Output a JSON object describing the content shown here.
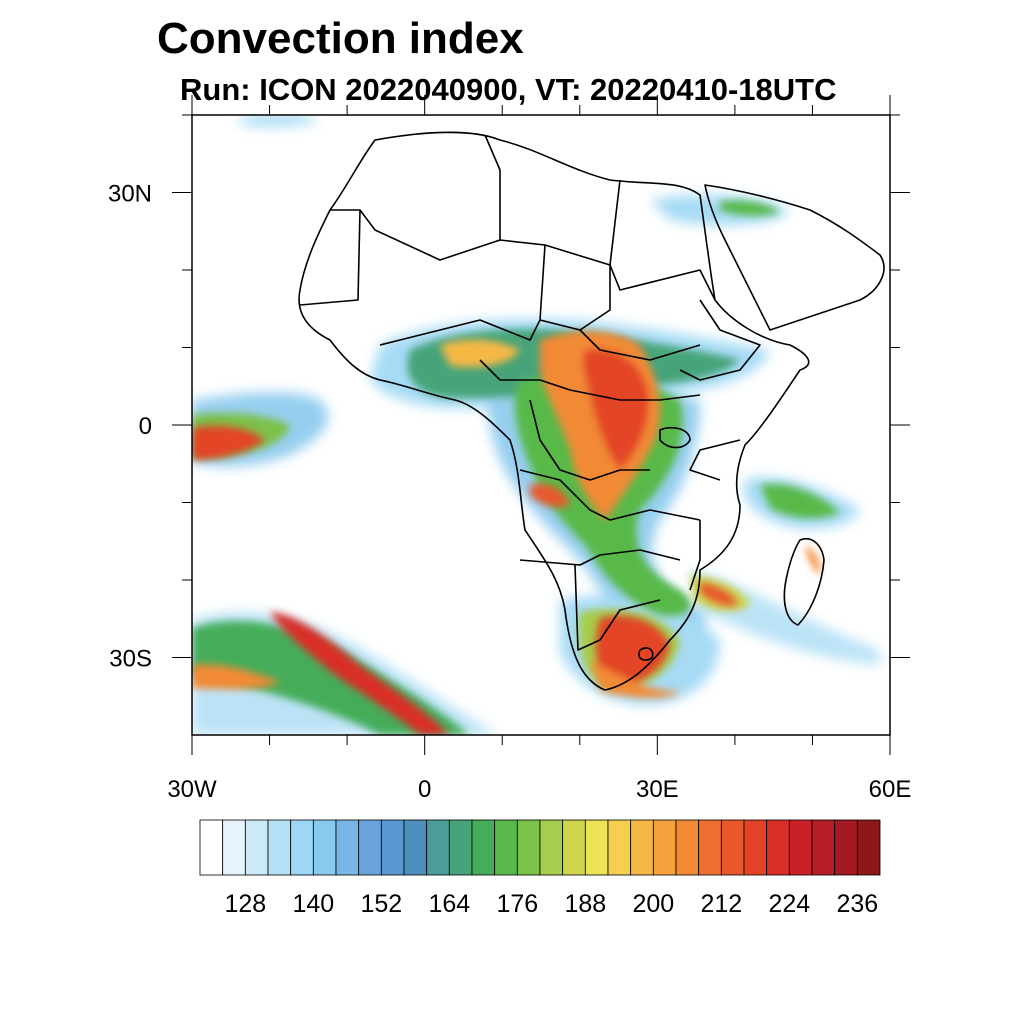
{
  "title": "Convection index",
  "subtitle": "Run: ICON 2022040900,  VT: 20220410-18UTC",
  "map": {
    "region": "Africa",
    "lon_range": [
      -30,
      60
    ],
    "lat_range": [
      -40,
      40
    ],
    "x_ticks": [
      {
        "lon": -30,
        "label": "30W"
      },
      {
        "lon": 0,
        "label": "0"
      },
      {
        "lon": 30,
        "label": "30E"
      },
      {
        "lon": 60,
        "label": "60E"
      }
    ],
    "y_ticks": [
      {
        "lat": 30,
        "label": "30N"
      },
      {
        "lat": 0,
        "label": "0"
      },
      {
        "lat": -30,
        "label": "30S"
      }
    ]
  },
  "colorbar": {
    "levels": [
      120,
      124,
      128,
      132,
      136,
      140,
      144,
      148,
      152,
      156,
      160,
      164,
      168,
      172,
      176,
      180,
      184,
      188,
      192,
      196,
      200,
      204,
      208,
      212,
      216,
      220,
      224,
      228,
      232,
      236,
      240
    ],
    "labels": [
      "128",
      "140",
      "152",
      "164",
      "176",
      "188",
      "200",
      "212",
      "224",
      "236"
    ],
    "colors": [
      "#ffffff",
      "#e6f4fc",
      "#cce9f8",
      "#b4e0f6",
      "#9dd7f4",
      "#8ac9ee",
      "#78b6e6",
      "#6aa4dc",
      "#5a96d2",
      "#4d8fbc",
      "#4a9d9a",
      "#47a47a",
      "#45ad5a",
      "#58b94a",
      "#7cc14a",
      "#a6cd4b",
      "#cdd64c",
      "#ede356",
      "#f6cf4f",
      "#f5b844",
      "#f5a13c",
      "#f28a36",
      "#ee7030",
      "#e8582b",
      "#e34428",
      "#d92e28",
      "#c82228",
      "#b81e26",
      "#a41a22",
      "#8e1719"
    ]
  }
}
